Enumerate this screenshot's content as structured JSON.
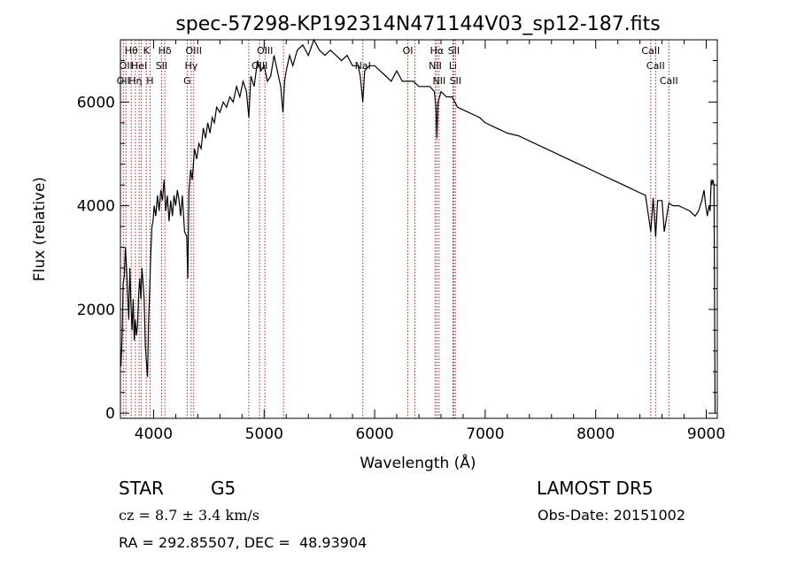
{
  "chart_data": {
    "type": "line",
    "title": "spec-57298-KP192314N471144V03_sp12-187.fits",
    "xlabel": "Wavelength (Å)",
    "ylabel": "Flux (relative)",
    "xlim": [
      3700,
      9100
    ],
    "ylim": [
      -100,
      7200
    ],
    "xticks": [
      {
        "value": 4000,
        "label": "4000"
      },
      {
        "value": 5000,
        "label": "5000"
      },
      {
        "value": 6000,
        "label": "6000"
      },
      {
        "value": 7000,
        "label": "7000"
      },
      {
        "value": 8000,
        "label": "8000"
      },
      {
        "value": 9000,
        "label": "9000"
      }
    ],
    "yticks": [
      {
        "value": 0,
        "label": "0"
      },
      {
        "value": 2000,
        "label": "2000"
      },
      {
        "value": 4000,
        "label": "4000"
      },
      {
        "value": 6000,
        "label": "6000"
      }
    ],
    "grid": false,
    "line_color": "#000000",
    "marker_color": "#b22222",
    "series": [
      {
        "x": [
          3705,
          3715,
          3725,
          3735,
          3745,
          3755,
          3765,
          3775,
          3785,
          3795,
          3805,
          3815,
          3825,
          3835,
          3845,
          3855,
          3865,
          3875,
          3885,
          3895,
          3905,
          3915,
          3925,
          3935,
          3945,
          3955,
          3965,
          3975,
          3985,
          3995,
          4005,
          4020,
          4035,
          4050,
          4065,
          4080,
          4095,
          4110,
          4125,
          4140,
          4155,
          4170,
          4185,
          4200,
          4215,
          4230,
          4245,
          4260,
          4280,
          4300,
          4310,
          4320,
          4335,
          4350,
          4370,
          4390,
          4410,
          4430,
          4450,
          4470,
          4490,
          4510,
          4530,
          4550,
          4570,
          4600,
          4630,
          4660,
          4690,
          4720,
          4750,
          4780,
          4810,
          4840,
          4862,
          4880,
          4910,
          4940,
          4970,
          5000,
          5030,
          5060,
          5090,
          5120,
          5150,
          5170,
          5185,
          5200,
          5230,
          5260,
          5300,
          5350,
          5400,
          5450,
          5500,
          5550,
          5600,
          5650,
          5700,
          5750,
          5800,
          5850,
          5870,
          5893,
          5910,
          5950,
          6000,
          6050,
          6100,
          6150,
          6200,
          6250,
          6300,
          6350,
          6400,
          6450,
          6500,
          6540,
          6555,
          6563,
          6575,
          6600,
          6650,
          6700,
          6750,
          6800,
          6850,
          6900,
          6950,
          7000,
          7100,
          7200,
          7300,
          7400,
          7500,
          7600,
          7700,
          7800,
          7900,
          8000,
          8100,
          8200,
          8300,
          8400,
          8450,
          8498,
          8520,
          8542,
          8560,
          8600,
          8620,
          8662,
          8700,
          8750,
          8800,
          8850,
          8900,
          8930,
          8960,
          8980,
          8995,
          9010,
          9025,
          9035,
          9045,
          9050,
          9060,
          9070,
          9080
        ],
        "y": [
          900,
          1500,
          2500,
          2650,
          3200,
          2800,
          2300,
          1800,
          2800,
          2100,
          1600,
          2200,
          1400,
          1800,
          1500,
          1700,
          2300,
          2600,
          2200,
          2800,
          2500,
          2200,
          1300,
          1000,
          700,
          1800,
          2400,
          3100,
          3600,
          3700,
          4000,
          3800,
          4200,
          3900,
          4300,
          4100,
          4500,
          3900,
          4200,
          3700,
          4100,
          3800,
          4200,
          4000,
          4300,
          4100,
          3800,
          4200,
          3500,
          3400,
          2600,
          4300,
          4700,
          4500,
          5100,
          4900,
          5200,
          5100,
          5500,
          5300,
          5600,
          5400,
          5700,
          5600,
          5900,
          5800,
          6000,
          5900,
          6100,
          6000,
          6300,
          6100,
          6400,
          6200,
          5700,
          6500,
          6300,
          6800,
          6600,
          6700,
          6400,
          6500,
          6900,
          6600,
          6300,
          5800,
          6400,
          6600,
          6900,
          6700,
          7000,
          7100,
          6900,
          7200,
          7000,
          6900,
          7000,
          6900,
          6800,
          6900,
          6700,
          6700,
          6500,
          6000,
          6600,
          6700,
          6700,
          6600,
          6500,
          6400,
          6600,
          6400,
          6400,
          6400,
          6300,
          6300,
          6300,
          6200,
          5900,
          5300,
          6000,
          6200,
          6100,
          6100,
          5900,
          5850,
          5800,
          5750,
          5700,
          5600,
          5500,
          5400,
          5350,
          5250,
          5150,
          5050,
          4950,
          4850,
          4750,
          4650,
          4550,
          4450,
          4350,
          4250,
          4200,
          3500,
          4150,
          3400,
          4100,
          4100,
          3500,
          4050,
          4000,
          4000,
          3950,
          3900,
          3800,
          3900,
          4100,
          4300,
          4000,
          3800,
          4000,
          3900,
          4500,
          4400,
          4500,
          4400,
          0
        ]
      }
    ],
    "line_markers": [
      {
        "x": 3726,
        "label": "OII"
      },
      {
        "x": 3750,
        "label": "OII"
      },
      {
        "x": 3798,
        "label": "Hθ"
      },
      {
        "x": 3835,
        "label": "Hη"
      },
      {
        "x": 3869,
        "label": "HeI"
      },
      {
        "x": 3889,
        "label": "HeI"
      },
      {
        "x": 3934,
        "label": "K"
      },
      {
        "x": 3968,
        "label": "H"
      },
      {
        "x": 4072,
        "label": "SII"
      },
      {
        "x": 4102,
        "label": "Hδ"
      },
      {
        "x": 4304,
        "label": "G"
      },
      {
        "x": 4340,
        "label": "Hγ"
      },
      {
        "x": 4363,
        "label": "OIII"
      },
      {
        "x": 4861,
        "label": "Hβ"
      },
      {
        "x": 4959,
        "label": "OIII"
      },
      {
        "x": 5007,
        "label": "OIII"
      },
      {
        "x": 5175,
        "label": "Mg"
      },
      {
        "x": 5893,
        "label": "NaI"
      },
      {
        "x": 6300,
        "label": "OI"
      },
      {
        "x": 6364,
        "label": "OI"
      },
      {
        "x": 6548,
        "label": "NII"
      },
      {
        "x": 6563,
        "label": "Hα"
      },
      {
        "x": 6583,
        "label": "NII"
      },
      {
        "x": 6708,
        "label": "Li"
      },
      {
        "x": 6716,
        "label": "SII"
      },
      {
        "x": 6731,
        "label": "SII"
      },
      {
        "x": 8498,
        "label": "CaII"
      },
      {
        "x": 8542,
        "label": "CaII"
      },
      {
        "x": 8662,
        "label": "CaII"
      }
    ],
    "marker_labels": [
      {
        "x": 3798,
        "row": 0,
        "text": "Hθ"
      },
      {
        "x": 3934,
        "row": 0,
        "text": "K"
      },
      {
        "x": 4102,
        "row": 0,
        "text": "Hδ"
      },
      {
        "x": 4363,
        "row": 0,
        "text": "OIII"
      },
      {
        "x": 5007,
        "row": 0,
        "text": "OIII"
      },
      {
        "x": 6300,
        "row": 0,
        "text": "OI"
      },
      {
        "x": 6563,
        "row": 0,
        "text": "Hα"
      },
      {
        "x": 6716,
        "row": 0,
        "text": "SII"
      },
      {
        "x": 8498,
        "row": 0,
        "text": "CaII"
      },
      {
        "x": 3750,
        "row": 1,
        "text": "OII"
      },
      {
        "x": 3869,
        "row": 1,
        "text": "HeI"
      },
      {
        "x": 4072,
        "row": 1,
        "text": "SII"
      },
      {
        "x": 4340,
        "row": 1,
        "text": "Hγ"
      },
      {
        "x": 4959,
        "row": 1,
        "text": "OIII"
      },
      {
        "x": 5893,
        "row": 1,
        "text": "NaI"
      },
      {
        "x": 6548,
        "row": 1,
        "text": "NII"
      },
      {
        "x": 6708,
        "row": 1,
        "text": "Li"
      },
      {
        "x": 8542,
        "row": 1,
        "text": "CaII"
      },
      {
        "x": 3726,
        "row": 2,
        "text": "OII"
      },
      {
        "x": 3835,
        "row": 2,
        "text": "Hη"
      },
      {
        "x": 3968,
        "row": 2,
        "text": "H"
      },
      {
        "x": 4304,
        "row": 2,
        "text": "G"
      },
      {
        "x": 6583,
        "row": 2,
        "text": "NII"
      },
      {
        "x": 6731,
        "row": 2,
        "text": "SII"
      },
      {
        "x": 8662,
        "row": 2,
        "text": "CaII"
      }
    ]
  },
  "info": {
    "class_label": "STAR",
    "subclass": "G5",
    "survey": "LAMOST DR5",
    "redshift": "cz = 8.7 ± 3.4 km/s",
    "obs_date": "Obs-Date: 20151002",
    "coords": "RA = 292.85507, DEC =  48.93904"
  }
}
